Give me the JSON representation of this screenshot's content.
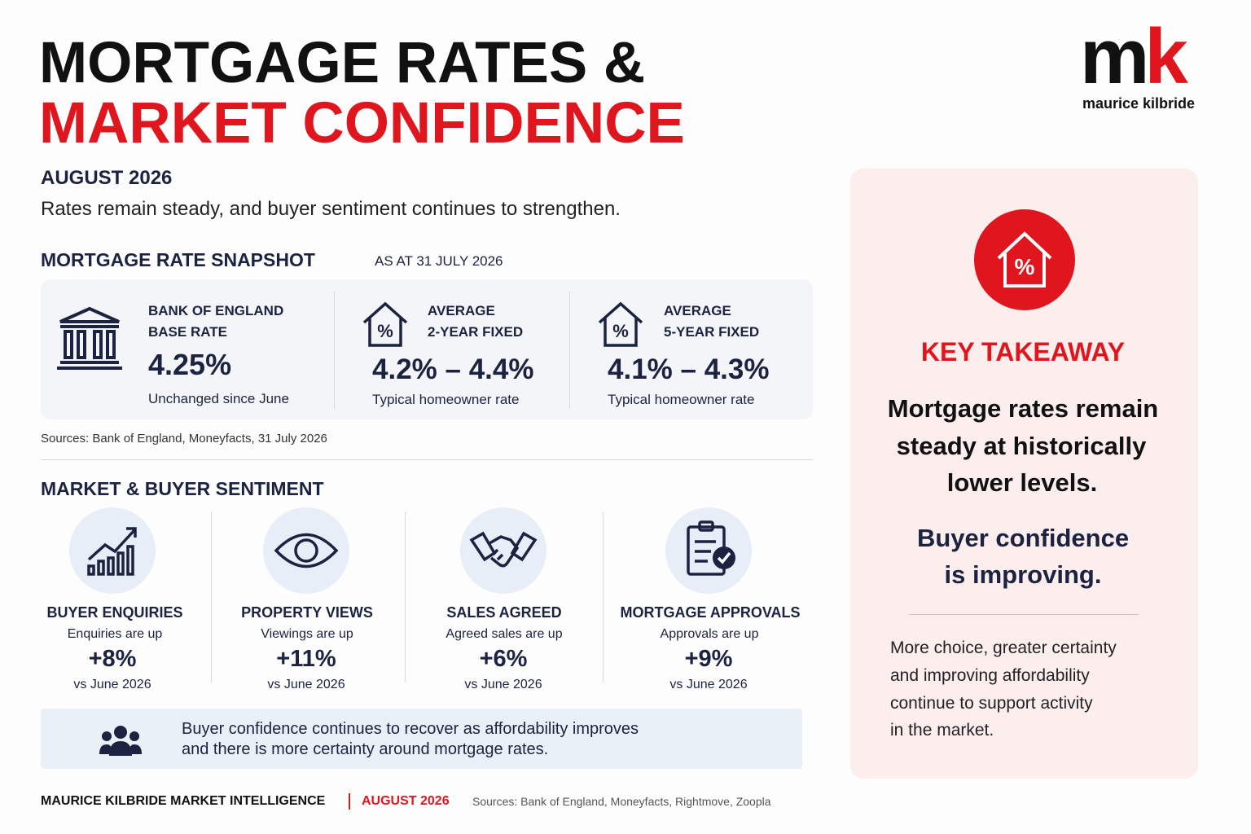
{
  "logo": {
    "mark": [
      "m",
      "k"
    ],
    "name": "maurice kilbride"
  },
  "header": {
    "title_line1": "MORTGAGE RATES &",
    "title_line2": "MARKET CONFIDENCE",
    "date": "AUGUST 2026",
    "subtitle": "Rates remain steady, and buyer sentiment continues to strengthen."
  },
  "snapshot": {
    "heading": "MORTGAGE RATE SNAPSHOT",
    "as_at": "AS AT 31 JULY 2026",
    "cards": [
      {
        "label_line1": "BANK OF ENGLAND",
        "label_line2": "BASE RATE",
        "value": "4.25%",
        "note": "Unchanged since June"
      },
      {
        "label_line1": "AVERAGE",
        "label_line2": "2-YEAR FIXED",
        "value": "4.2% – 4.4%",
        "note": "Typical homeowner rate"
      },
      {
        "label_line1": "AVERAGE",
        "label_line2": "5-YEAR FIXED",
        "value": "4.1% – 4.3%",
        "note": "Typical homeowner rate"
      }
    ],
    "sources": "Sources: Bank of England, Moneyfacts, 31 July 2026"
  },
  "sentiment": {
    "heading": "MARKET & BUYER SENTIMENT",
    "items": [
      {
        "title": "BUYER ENQUIRIES",
        "desc": "Enquiries are up",
        "change": "+8%",
        "compare": "vs June 2026"
      },
      {
        "title": "PROPERTY VIEWS",
        "desc": "Viewings are up",
        "change": "+11%",
        "compare": "vs June 2026"
      },
      {
        "title": "SALES AGREED",
        "desc": "Agreed sales are up",
        "change": "+6%",
        "compare": "vs June 2026"
      },
      {
        "title": "MORTGAGE APPROVALS",
        "desc": "Approvals are up",
        "change": "+9%",
        "compare": "vs June 2026"
      }
    ],
    "banner": [
      "Buyer confidence continues to recover as affordability improves",
      "and there is more certainty around mortgage rates."
    ]
  },
  "takeaway": {
    "heading": "KEY TAKEAWAY",
    "statement": [
      "Mortgage rates remain",
      "steady at historically",
      "lower levels."
    ],
    "confidence": [
      "Buyer confidence",
      "is improving."
    ],
    "body": [
      "More choice, greater certainty",
      "and improving affordability",
      "continue to support activity",
      "in the market."
    ]
  },
  "footer": {
    "brand": "MAURICE KILBRIDE MARKET INTELLIGENCE",
    "date": "AUGUST 2026",
    "sources": "Sources: Bank of England, Moneyfacts, Rightmove, Zoopla"
  }
}
